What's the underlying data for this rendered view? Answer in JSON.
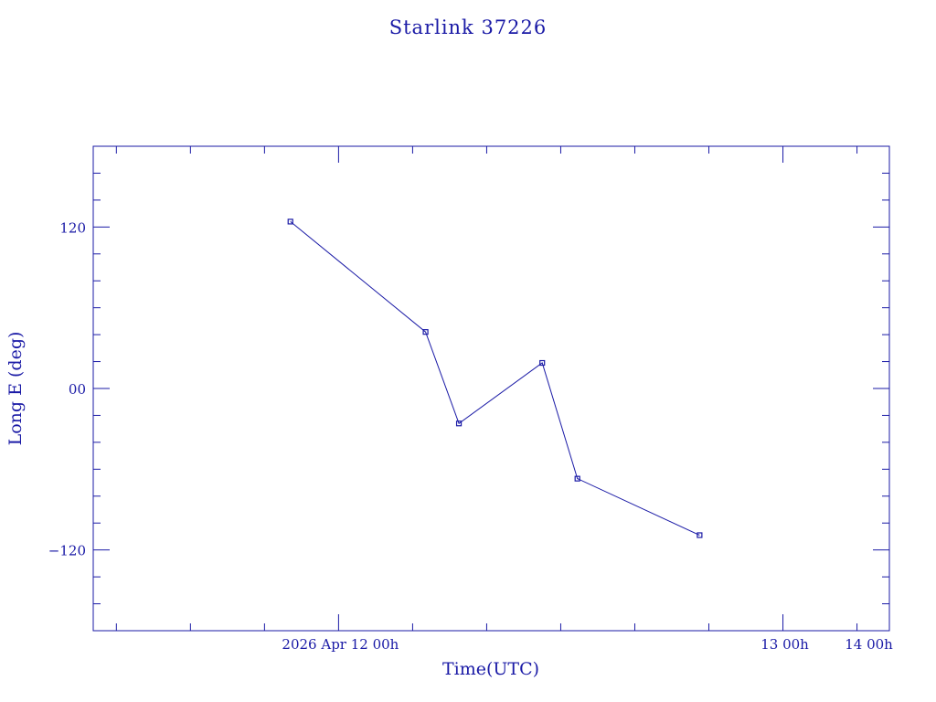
{
  "chart_data": {
    "type": "line",
    "title": "Starlink 37226",
    "xlabel": "Time(UTC)",
    "ylabel": "Long E (deg)",
    "colors": {
      "axis": "#1a1aa6",
      "series": "#1a1aa6"
    },
    "x_unit": "hours",
    "xlim": [
      -13.25,
      29.75
    ],
    "ylim": [
      -180,
      180
    ],
    "x_ticks": [
      {
        "value": 0,
        "label": "2026 Apr 12  00h"
      },
      {
        "value": 24,
        "label": "13  00h"
      },
      {
        "value": 48,
        "label": "14  00h"
      }
    ],
    "y_ticks": [
      {
        "value": 120,
        "label": "120"
      },
      {
        "value": 0,
        "label": "00"
      },
      {
        "value": -120,
        "label": "−120"
      }
    ],
    "grid": false,
    "series": [
      {
        "marker": "square",
        "x": [
          -2.6,
          4.7,
          6.5,
          11.0,
          12.9,
          19.5
        ],
        "y": [
          124,
          42,
          -26,
          19,
          -67,
          -109
        ]
      }
    ]
  }
}
